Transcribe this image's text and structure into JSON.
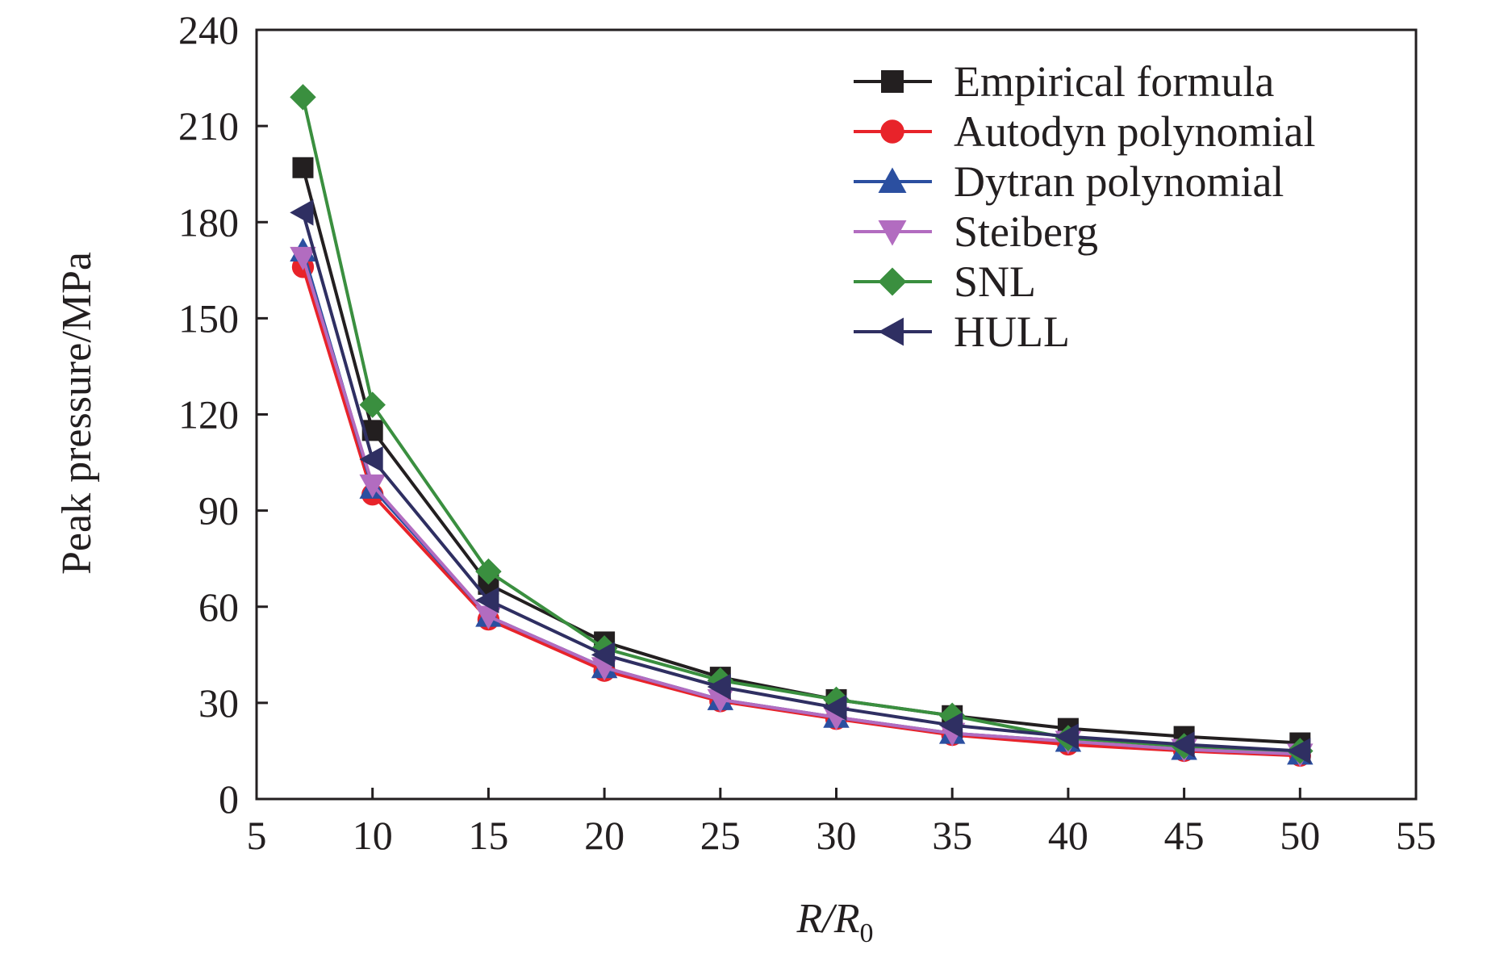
{
  "chart_data": {
    "type": "line",
    "title": "",
    "xlabel": "R/R0",
    "xlabel_parts": {
      "main": "R/R",
      "sub": "0"
    },
    "ylabel": "Peak pressure/MPa",
    "xlim": [
      5,
      55
    ],
    "ylim": [
      0,
      240
    ],
    "xticks": [
      5,
      10,
      15,
      20,
      25,
      30,
      35,
      40,
      45,
      50,
      55
    ],
    "yticks": [
      0,
      30,
      60,
      90,
      120,
      150,
      180,
      210,
      240
    ],
    "grid": false,
    "legend_position": "top-right",
    "x": [
      7,
      10,
      15,
      20,
      25,
      30,
      35,
      40,
      45,
      50
    ],
    "series": [
      {
        "name": "Empirical formula",
        "color": "#231f20",
        "marker": "square",
        "values": [
          197,
          115,
          67,
          49,
          38,
          31,
          26,
          22,
          19.5,
          17.5
        ]
      },
      {
        "name": "Autodyn polynomial",
        "color": "#e8232a",
        "marker": "circle",
        "values": [
          166,
          95,
          56,
          40,
          30.5,
          25,
          20,
          17,
          15,
          13.5
        ]
      },
      {
        "name": "Dytran polynomial",
        "color": "#2b4fa0",
        "marker": "triangle-up",
        "values": [
          171,
          97,
          57,
          41,
          31,
          25.5,
          20.5,
          18,
          15.5,
          14
        ]
      },
      {
        "name": "Steiberg",
        "color": "#b26cc0",
        "marker": "triangle-down",
        "values": [
          169,
          98,
          57,
          41,
          31,
          25.5,
          20.5,
          18,
          15.5,
          14
        ]
      },
      {
        "name": "SNL",
        "color": "#3a8f3f",
        "marker": "diamond",
        "values": [
          219,
          123,
          71,
          47,
          37,
          31,
          26,
          19,
          16.5,
          15
        ]
      },
      {
        "name": "HULL",
        "color": "#2f2f62",
        "marker": "triangle-left",
        "values": [
          183,
          106,
          62,
          45,
          35,
          28.5,
          23,
          19.5,
          17,
          15
        ]
      }
    ]
  }
}
